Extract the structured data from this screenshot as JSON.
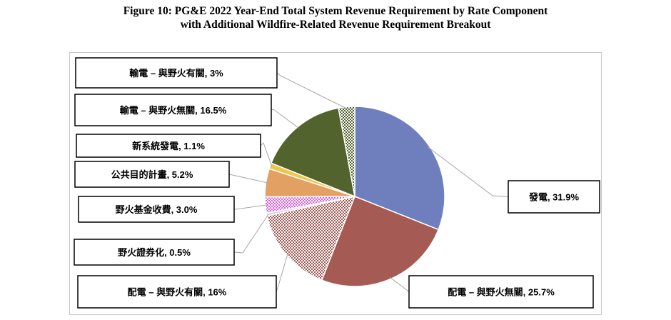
{
  "title": {
    "line1": "Figure 10:  PG&E 2022 Year-End Total System Revenue Requirement by Rate Component",
    "line2": "with Additional Wildfire-Related Revenue Requirement Breakout"
  },
  "chart_data": {
    "type": "pie",
    "start_angle_deg": 0,
    "direction": "clockwise",
    "slices": [
      {
        "label": "發電, 31.9%",
        "value": 31.9,
        "color": "#6f7fbd",
        "pattern": "solid"
      },
      {
        "label": "配電 – 與野火無關, 25.7%",
        "value": 25.7,
        "color": "#a55a54",
        "pattern": "solid"
      },
      {
        "label": "配電 – 與野火有關, 16%",
        "value": 16.0,
        "color": "#a55a54",
        "pattern": "hatched"
      },
      {
        "label": "野火證券化, 0.5%",
        "value": 0.5,
        "color": "#d9d9d9",
        "pattern": "solid"
      },
      {
        "label": "野火基金收費, 3.0%",
        "value": 3.0,
        "color": "#d660e0",
        "pattern": "hatched"
      },
      {
        "label": "公共目的計畫, 5.2%",
        "value": 5.2,
        "color": "#e3a063",
        "pattern": "solid"
      },
      {
        "label": "新系統發電, 1.1%",
        "value": 1.1,
        "color": "#f0c64a",
        "pattern": "solid"
      },
      {
        "label": "輸電 – 與野火無關, 16.5%",
        "value": 16.5,
        "color": "#52632e",
        "pattern": "solid"
      },
      {
        "label": "輸電 – 與野火有關, 3%",
        "value": 3.0,
        "color": "#52632e",
        "pattern": "hatched"
      }
    ],
    "legend": "none"
  }
}
